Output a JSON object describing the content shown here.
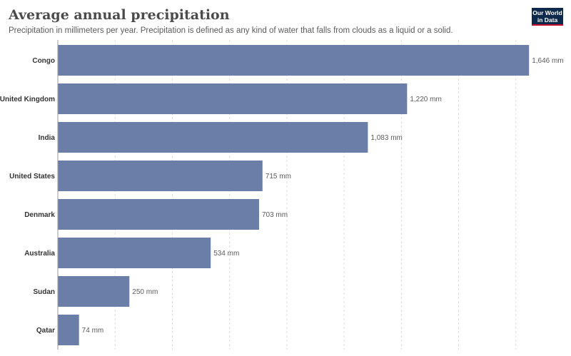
{
  "header": {
    "title": "Average annual precipitation",
    "subtitle": "Precipitation in millimeters per year. Precipitation is defined as any kind of water that falls from clouds as a liquid or a solid."
  },
  "logo": {
    "line1": "Our World",
    "line2": "in Data"
  },
  "colors": {
    "bar": "#6a7ea8",
    "grid": "#dddddd",
    "axis": "#999999"
  },
  "chart_data": {
    "type": "bar",
    "orientation": "horizontal",
    "title": "Average annual precipitation",
    "subtitle": "Precipitation in millimeters per year. Precipitation is defined as any kind of water that falls from clouds as a liquid or a solid.",
    "categories": [
      "Congo",
      "United Kingdom",
      "India",
      "United States",
      "Denmark",
      "Australia",
      "Sudan",
      "Qatar"
    ],
    "values": [
      1646,
      1220,
      1083,
      715,
      703,
      534,
      250,
      74
    ],
    "value_labels": [
      "1,646 mm",
      "1,220 mm",
      "1,083 mm",
      "715 mm",
      "703 mm",
      "534 mm",
      "250 mm",
      "74 mm"
    ],
    "unit": "mm",
    "xlim": [
      0,
      1800
    ],
    "grid": "vertical dashed",
    "legend": "none"
  }
}
